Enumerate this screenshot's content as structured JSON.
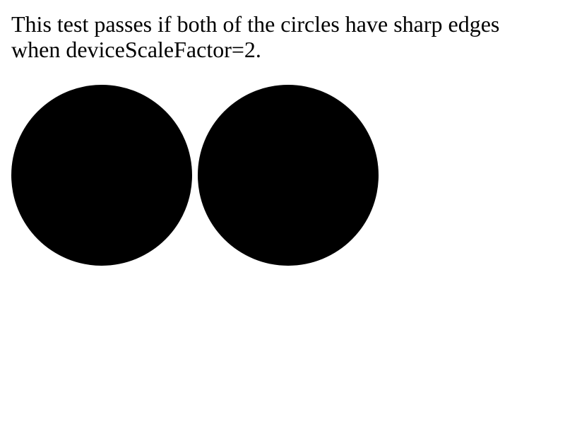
{
  "description": "This test passes if both of the circles have sharp edges when deviceScaleFactor=2.",
  "circles": {
    "count": 2,
    "color": "#000000"
  }
}
